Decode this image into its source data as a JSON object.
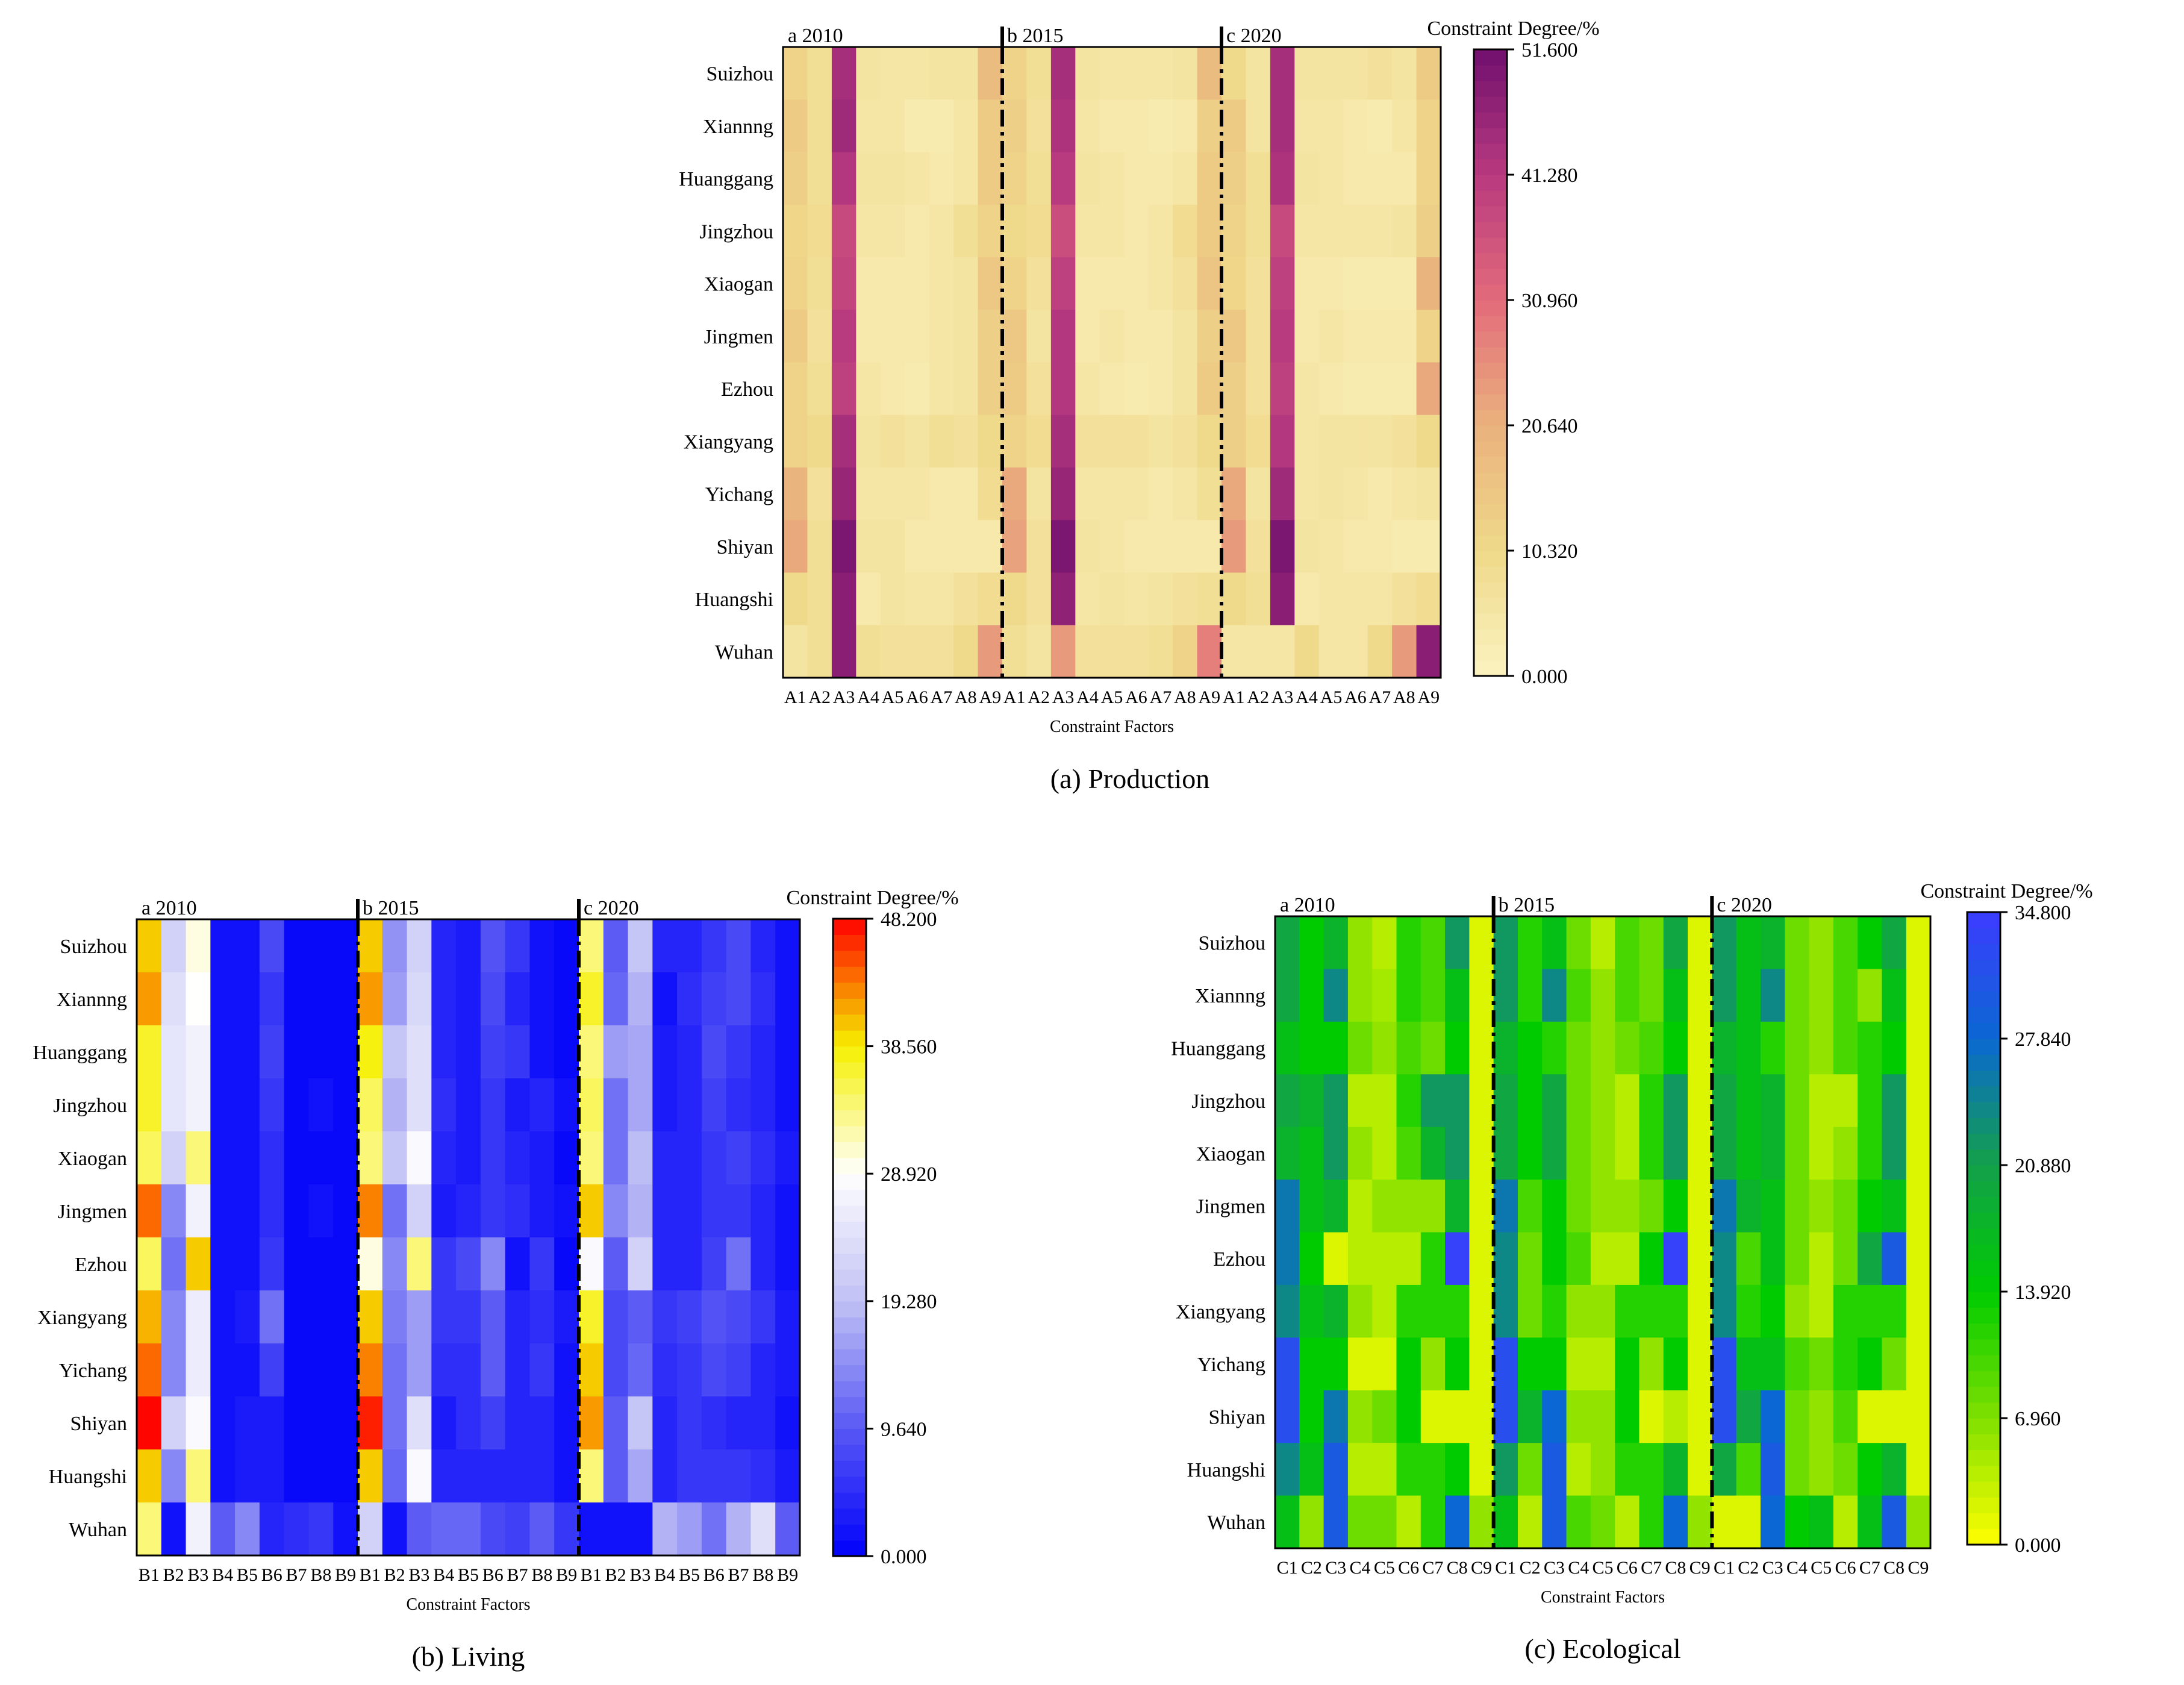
{
  "chart_data": [
    {
      "type": "heatmap",
      "caption": "(a) Production",
      "xlabel": "Constraint Factors",
      "x": [
        "A1",
        "A2",
        "A3",
        "A4",
        "A5",
        "A6",
        "A7",
        "A8",
        "A9",
        "A1",
        "A2",
        "A3",
        "A4",
        "A5",
        "A6",
        "A7",
        "A8",
        "A9",
        "A1",
        "A2",
        "A3",
        "A4",
        "A5",
        "A6",
        "A7",
        "A8",
        "A9"
      ],
      "periods": [
        "a 2010",
        "b 2015",
        "c 2020"
      ],
      "y": [
        "Suizhou",
        "Xiannng",
        "Huanggang",
        "Jingzhou",
        "Xiaogan",
        "Jingmen",
        "Ezhou",
        "Xiangyang",
        "Yichang",
        "Shiyan",
        "Huangshi",
        "Wuhan"
      ],
      "colorbar": {
        "title": "Constraint Degree/%",
        "ticks": [
          "0.000",
          "10.320",
          "20.640",
          "30.960",
          "41.280",
          "51.600"
        ],
        "min": 0,
        "max": 51.6,
        "colors": [
          "#fbf3c0",
          "#efd98a",
          "#eab27d",
          "#e36b7b",
          "#b83a7f",
          "#700f6e"
        ]
      },
      "values": [
        [
          12,
          8,
          44,
          6,
          5,
          5,
          6,
          6,
          18,
          12,
          8,
          44,
          6,
          5,
          5,
          5,
          6,
          18,
          10,
          6,
          44,
          6,
          6,
          6,
          7,
          6,
          14
        ],
        [
          14,
          8,
          45,
          5,
          5,
          3,
          3,
          5,
          14,
          13,
          7,
          43,
          5,
          4,
          4,
          3,
          4,
          13,
          14,
          6,
          44,
          5,
          5,
          4,
          3,
          5,
          12
        ],
        [
          13,
          8,
          42,
          6,
          6,
          5,
          4,
          5,
          14,
          12,
          8,
          41,
          6,
          5,
          4,
          4,
          5,
          14,
          13,
          8,
          43,
          6,
          5,
          4,
          4,
          4,
          12
        ],
        [
          11,
          9,
          38,
          5,
          5,
          4,
          5,
          8,
          12,
          10,
          9,
          37,
          5,
          5,
          4,
          5,
          9,
          14,
          12,
          8,
          38,
          5,
          5,
          5,
          5,
          6,
          13
        ],
        [
          12,
          8,
          39,
          4,
          4,
          4,
          5,
          6,
          15,
          12,
          7,
          40,
          4,
          4,
          4,
          5,
          7,
          16,
          11,
          7,
          40,
          4,
          4,
          3,
          3,
          3,
          20
        ],
        [
          14,
          7,
          41,
          4,
          4,
          4,
          5,
          6,
          13,
          15,
          6,
          42,
          4,
          5,
          4,
          4,
          6,
          13,
          15,
          7,
          41,
          4,
          5,
          4,
          4,
          4,
          12
        ],
        [
          12,
          8,
          40,
          5,
          4,
          3,
          5,
          6,
          13,
          14,
          7,
          42,
          5,
          4,
          3,
          4,
          6,
          14,
          13,
          7,
          40,
          5,
          4,
          3,
          3,
          3,
          22
        ],
        [
          12,
          10,
          44,
          6,
          7,
          6,
          8,
          7,
          10,
          12,
          9,
          44,
          7,
          7,
          7,
          6,
          7,
          10,
          13,
          9,
          42,
          5,
          6,
          6,
          6,
          7,
          10
        ],
        [
          20,
          7,
          46,
          5,
          5,
          5,
          4,
          4,
          9,
          22,
          6,
          46,
          5,
          5,
          5,
          4,
          5,
          8,
          22,
          6,
          45,
          5,
          6,
          5,
          4,
          5,
          6
        ],
        [
          22,
          8,
          50,
          6,
          6,
          4,
          4,
          4,
          4,
          23,
          7,
          50,
          6,
          5,
          4,
          4,
          4,
          4,
          24,
          7,
          50,
          6,
          5,
          4,
          4,
          3,
          3
        ],
        [
          10,
          8,
          48,
          4,
          6,
          5,
          5,
          7,
          9,
          10,
          7,
          47,
          5,
          6,
          5,
          6,
          7,
          8,
          10,
          8,
          48,
          4,
          5,
          5,
          5,
          7,
          9
        ],
        [
          6,
          8,
          48,
          8,
          7,
          7,
          7,
          10,
          24,
          8,
          6,
          24,
          7,
          7,
          7,
          8,
          12,
          28,
          5,
          5,
          5,
          10,
          5,
          5,
          10,
          24,
          48
        ]
      ]
    },
    {
      "type": "heatmap",
      "caption": "(b) Living",
      "xlabel": "Constraint Factors",
      "x": [
        "B1",
        "B2",
        "B3",
        "B4",
        "B5",
        "B6",
        "B7",
        "B8",
        "B9",
        "B1",
        "B2",
        "B3",
        "B4",
        "B5",
        "B6",
        "B7",
        "B8",
        "B9",
        "B1",
        "B2",
        "B3",
        "B4",
        "B5",
        "B6",
        "B7",
        "B8",
        "B9"
      ],
      "periods": [
        "a 2010",
        "b 2015",
        "c 2020"
      ],
      "y": [
        "Suizhou",
        "Xiannng",
        "Huanggang",
        "Jingzhou",
        "Xiaogan",
        "Jingmen",
        "Ezhou",
        "Xiangyang",
        "Yichang",
        "Shiyan",
        "Huangshi",
        "Wuhan"
      ],
      "colorbar": {
        "title": "Constraint Degree/%",
        "ticks": [
          "0.000",
          "9.640",
          "19.280",
          "28.920",
          "38.560",
          "48.200"
        ],
        "min": 0,
        "max": 48.2,
        "colors": [
          "#0000fb",
          "#5858f5",
          "#c0c0f5",
          "#ffffff",
          "#f5f000",
          "#ff0000"
        ]
      },
      "values": [
        [
          40,
          22,
          30,
          2,
          2,
          8,
          1,
          1,
          1,
          40,
          15,
          22,
          4,
          3,
          9,
          6,
          2,
          1,
          34,
          10,
          20,
          4,
          4,
          6,
          8,
          4,
          2
        ],
        [
          42,
          24,
          29,
          2,
          2,
          6,
          1,
          1,
          1,
          42,
          16,
          23,
          4,
          3,
          8,
          4,
          2,
          1,
          37,
          11,
          18,
          2,
          5,
          7,
          8,
          5,
          2
        ],
        [
          37,
          25,
          27,
          2,
          2,
          7,
          1,
          1,
          1,
          38,
          20,
          24,
          4,
          3,
          7,
          6,
          2,
          1,
          34,
          16,
          17,
          3,
          4,
          8,
          6,
          4,
          2
        ],
        [
          37,
          25,
          27,
          2,
          2,
          6,
          1,
          2,
          1,
          35,
          18,
          24,
          5,
          3,
          6,
          3,
          4,
          2,
          35,
          12,
          17,
          3,
          4,
          7,
          5,
          4,
          2
        ],
        [
          35,
          22,
          34,
          2,
          2,
          5,
          1,
          1,
          1,
          34,
          20,
          28,
          4,
          3,
          6,
          4,
          3,
          1,
          34,
          12,
          19,
          4,
          4,
          6,
          7,
          5,
          3
        ],
        [
          44,
          14,
          27,
          2,
          2,
          5,
          1,
          2,
          1,
          43,
          12,
          22,
          3,
          4,
          6,
          5,
          3,
          2,
          40,
          14,
          18,
          4,
          4,
          6,
          6,
          4,
          2
        ],
        [
          35,
          12,
          40,
          2,
          2,
          6,
          1,
          1,
          1,
          30,
          14,
          34,
          6,
          8,
          14,
          2,
          6,
          1,
          28,
          10,
          22,
          4,
          4,
          7,
          12,
          4,
          2
        ],
        [
          41,
          14,
          26,
          2,
          3,
          12,
          1,
          1,
          1,
          40,
          13,
          16,
          6,
          6,
          10,
          4,
          5,
          3,
          37,
          8,
          10,
          6,
          7,
          9,
          8,
          6,
          3
        ],
        [
          44,
          14,
          26,
          2,
          2,
          7,
          1,
          1,
          1,
          43,
          12,
          16,
          5,
          5,
          10,
          4,
          6,
          2,
          40,
          8,
          11,
          5,
          6,
          8,
          7,
          4,
          3
        ],
        [
          48,
          22,
          28,
          2,
          3,
          3,
          1,
          1,
          1,
          47,
          12,
          24,
          3,
          5,
          7,
          4,
          4,
          2,
          42,
          10,
          20,
          4,
          6,
          5,
          4,
          4,
          2
        ],
        [
          40,
          14,
          34,
          2,
          3,
          3,
          1,
          1,
          1,
          40,
          11,
          28,
          4,
          4,
          4,
          4,
          4,
          2,
          34,
          10,
          17,
          4,
          6,
          6,
          6,
          5,
          3
        ],
        [
          34,
          2,
          27,
          10,
          14,
          4,
          5,
          6,
          2,
          22,
          2,
          10,
          11,
          11,
          8,
          7,
          10,
          6,
          2,
          2,
          2,
          18,
          16,
          12,
          18,
          24,
          10
        ]
      ]
    },
    {
      "type": "heatmap",
      "caption": "(c) Ecological",
      "xlabel": "Constraint Factors",
      "x": [
        "C1",
        "C2",
        "C3",
        "C4",
        "C5",
        "C6",
        "C7",
        "C8",
        "C9",
        "C1",
        "C2",
        "C3",
        "C4",
        "C5",
        "C6",
        "C7",
        "C8",
        "C9",
        "C1",
        "C2",
        "C3",
        "C4",
        "C5",
        "C6",
        "C7",
        "C8",
        "C9"
      ],
      "periods": [
        "a 2010",
        "b 2015",
        "c 2020"
      ],
      "y": [
        "Suizhou",
        "Xiannng",
        "Huanggang",
        "Jingzhou",
        "Xiaogan",
        "Jingmen",
        "Ezhou",
        "Xiangyang",
        "Yichang",
        "Shiyan",
        "Huangshi",
        "Wuhan"
      ],
      "colorbar": {
        "title": "Constraint Degree/%",
        "ticks": [
          "0.000",
          "6.960",
          "13.920",
          "20.880",
          "27.840",
          "34.800"
        ],
        "min": 0,
        "max": 34.8,
        "colors": [
          "#ffff00",
          "#80e000",
          "#00cc00",
          "#12a04a",
          "#0a68d2",
          "#3c3cff"
        ]
      },
      "values": [
        [
          20,
          14,
          18,
          6,
          4,
          12,
          10,
          22,
          2,
          22,
          12,
          16,
          8,
          4,
          10,
          8,
          20,
          2,
          22,
          16,
          18,
          8,
          6,
          10,
          14,
          20,
          2
        ],
        [
          20,
          14,
          24,
          6,
          5,
          12,
          10,
          16,
          2,
          22,
          12,
          24,
          10,
          6,
          10,
          8,
          16,
          2,
          22,
          16,
          24,
          8,
          6,
          10,
          6,
          16,
          2
        ],
        [
          16,
          14,
          14,
          8,
          6,
          10,
          8,
          14,
          2,
          18,
          14,
          12,
          8,
          6,
          8,
          10,
          14,
          2,
          18,
          16,
          12,
          8,
          6,
          10,
          12,
          14,
          2
        ],
        [
          20,
          18,
          22,
          4,
          4,
          12,
          22,
          22,
          2,
          20,
          14,
          20,
          8,
          6,
          4,
          12,
          22,
          2,
          20,
          16,
          18,
          8,
          4,
          4,
          12,
          22,
          2
        ],
        [
          18,
          16,
          22,
          6,
          4,
          10,
          18,
          22,
          2,
          20,
          14,
          20,
          8,
          6,
          4,
          12,
          22,
          2,
          20,
          16,
          18,
          8,
          4,
          6,
          12,
          22,
          2
        ],
        [
          26,
          16,
          18,
          4,
          6,
          6,
          6,
          18,
          2,
          26,
          10,
          14,
          8,
          6,
          6,
          8,
          14,
          2,
          26,
          18,
          16,
          8,
          6,
          8,
          14,
          16,
          2
        ],
        [
          26,
          14,
          2,
          4,
          4,
          4,
          12,
          34,
          2,
          24,
          8,
          14,
          10,
          4,
          4,
          14,
          34,
          2,
          24,
          10,
          16,
          8,
          4,
          8,
          20,
          30,
          2
        ],
        [
          24,
          16,
          18,
          6,
          4,
          12,
          12,
          12,
          2,
          24,
          8,
          12,
          6,
          6,
          12,
          12,
          12,
          2,
          24,
          12,
          14,
          6,
          4,
          12,
          12,
          12,
          2
        ],
        [
          32,
          14,
          14,
          2,
          2,
          14,
          6,
          14,
          2,
          32,
          14,
          14,
          4,
          4,
          14,
          6,
          14,
          2,
          32,
          16,
          16,
          10,
          8,
          12,
          14,
          8,
          2
        ],
        [
          32,
          14,
          26,
          6,
          8,
          14,
          2,
          2,
          2,
          32,
          18,
          28,
          6,
          6,
          14,
          2,
          4,
          2,
          32,
          20,
          28,
          8,
          6,
          10,
          2,
          2,
          2
        ],
        [
          24,
          16,
          30,
          4,
          4,
          12,
          12,
          14,
          2,
          22,
          8,
          30,
          4,
          6,
          12,
          12,
          18,
          2,
          20,
          10,
          30,
          8,
          6,
          8,
          14,
          18,
          2
        ],
        [
          16,
          6,
          30,
          8,
          8,
          4,
          12,
          28,
          6,
          16,
          4,
          30,
          10,
          8,
          4,
          12,
          28,
          6,
          2,
          2,
          28,
          14,
          16,
          4,
          16,
          30,
          6
        ]
      ]
    }
  ]
}
